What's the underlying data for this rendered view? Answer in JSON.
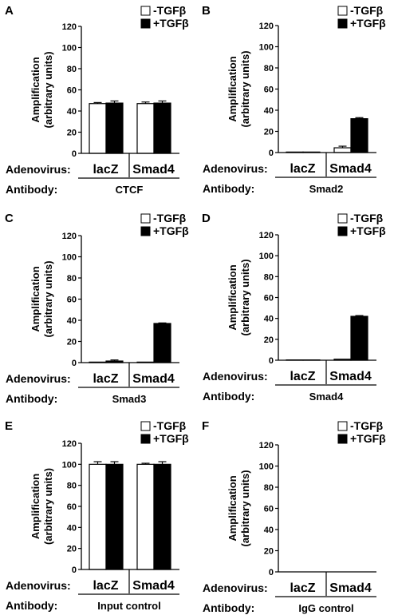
{
  "figure": {
    "y_label_line1": "Amplification",
    "y_label_line2": "(arbitrary units)",
    "adenovirus_label": "Adenovirus:",
    "antibody_label": "Antibody:",
    "legend": [
      {
        "label": "-TGFβ",
        "fill": "#ffffff"
      },
      {
        "label": "+TGFβ",
        "fill": "#000000"
      }
    ]
  },
  "chart_data": [
    {
      "panel": "A",
      "type": "bar",
      "categories": [
        "lacZ",
        "Smad4"
      ],
      "antibody": "CTCF",
      "ylim": [
        0,
        120
      ],
      "yticks": [
        0,
        20,
        40,
        60,
        80,
        100,
        120
      ],
      "series": [
        {
          "name": "-TGFβ",
          "values": [
            47,
            47
          ],
          "errors": [
            1,
            1.5
          ]
        },
        {
          "name": "+TGFβ",
          "values": [
            47.5,
            47.5
          ],
          "errors": [
            2,
            2
          ]
        }
      ]
    },
    {
      "panel": "B",
      "type": "bar",
      "categories": [
        "lacZ",
        "Smad4"
      ],
      "antibody": "Smad2",
      "ylim": [
        0,
        120
      ],
      "yticks": [
        0,
        20,
        40,
        60,
        80,
        100,
        120
      ],
      "series": [
        {
          "name": "-TGFβ",
          "values": [
            0.5,
            4.5
          ],
          "errors": [
            0,
            1.5
          ]
        },
        {
          "name": "+TGFβ",
          "values": [
            0.5,
            32
          ],
          "errors": [
            0,
            1
          ]
        }
      ]
    },
    {
      "panel": "C",
      "type": "bar",
      "categories": [
        "lacZ",
        "Smad4"
      ],
      "antibody": "Smad3",
      "ylim": [
        0,
        120
      ],
      "yticks": [
        0,
        20,
        40,
        60,
        80,
        100,
        120
      ],
      "series": [
        {
          "name": "-TGFβ",
          "values": [
            0.5,
            0.5
          ],
          "errors": [
            0,
            0
          ]
        },
        {
          "name": "+TGFβ",
          "values": [
            1.5,
            37
          ],
          "errors": [
            1,
            0.5
          ]
        }
      ]
    },
    {
      "panel": "D",
      "type": "bar",
      "categories": [
        "lacZ",
        "Smad4"
      ],
      "antibody": "Smad4",
      "ylim": [
        0,
        120
      ],
      "yticks": [
        0,
        20,
        40,
        60,
        80,
        100,
        120
      ],
      "series": [
        {
          "name": "-TGFβ",
          "values": [
            0.3,
            1
          ],
          "errors": [
            0,
            0
          ]
        },
        {
          "name": "+TGFβ",
          "values": [
            0.3,
            42
          ],
          "errors": [
            0,
            0.7
          ]
        }
      ]
    },
    {
      "panel": "E",
      "type": "bar",
      "categories": [
        "lacZ",
        "Smad4"
      ],
      "antibody": "Input control",
      "ylim": [
        0,
        120
      ],
      "yticks": [
        0,
        20,
        40,
        60,
        80,
        100,
        120
      ],
      "series": [
        {
          "name": "-TGFβ",
          "values": [
            100,
            100
          ],
          "errors": [
            2.5,
            1
          ]
        },
        {
          "name": "+TGFβ",
          "values": [
            100,
            100
          ],
          "errors": [
            2.5,
            2.5
          ]
        }
      ]
    },
    {
      "panel": "F",
      "type": "bar",
      "categories": [
        "lacZ",
        "Smad4"
      ],
      "antibody": "IgG control",
      "ylim": [
        0,
        120
      ],
      "yticks": [
        0,
        20,
        40,
        60,
        80,
        100,
        120
      ],
      "series": [
        {
          "name": "-TGFβ",
          "values": [
            0,
            0
          ],
          "errors": [
            0,
            0
          ]
        },
        {
          "name": "+TGFβ",
          "values": [
            0,
            0
          ],
          "errors": [
            0,
            0
          ]
        }
      ]
    }
  ]
}
